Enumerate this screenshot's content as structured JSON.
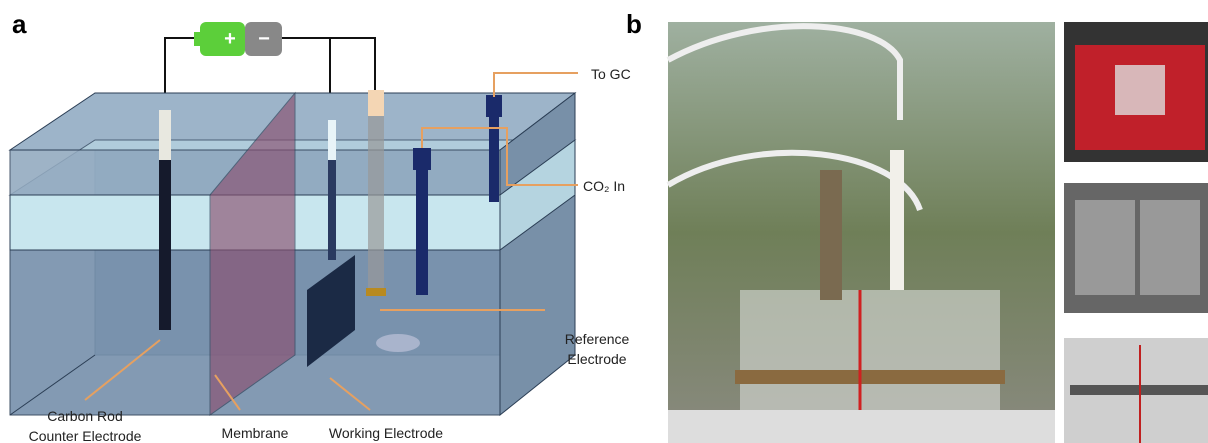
{
  "panel_a": {
    "label": "a",
    "battery": {
      "plus": "+",
      "minus": "−"
    },
    "labels": {
      "to_gc": "To GC",
      "co2_in": "CO₂ In",
      "reference": [
        "Reference",
        "Electrode"
      ],
      "counter": [
        "Carbon Rod",
        "Counter Electrode"
      ],
      "membrane": "Membrane",
      "working": "Working Electrode"
    }
  },
  "panel_b": {
    "label": "b"
  }
}
